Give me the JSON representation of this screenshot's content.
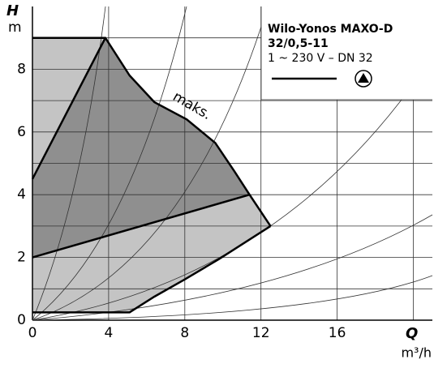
{
  "chart_data": {
    "type": "area",
    "title": "Wilo-Yonos MAXO-D",
    "title_line2": "32/0,5-11",
    "subtitle": "1 ~ 230 V – DN 32",
    "ylabel": "H",
    "yunit": "m",
    "xlabel": "Q",
    "xunit": "m³/h",
    "xlim": [
      0,
      21
    ],
    "ylim": [
      0,
      10
    ],
    "xticks": [
      0,
      4,
      8,
      12,
      16
    ],
    "xminor": [
      20
    ],
    "yticks": [
      0,
      2,
      4,
      6,
      8
    ],
    "yminor": [
      1,
      3,
      5,
      7,
      9
    ],
    "grid": true,
    "fill_light": "#c4c4c4",
    "fill_dark": "#8f8f8f",
    "series": [
      {
        "name": "maks.",
        "x": [
          0,
          3.83,
          5.1,
          6.4,
          8.1,
          9.6,
          10.6,
          11.4,
          12.5
        ],
        "values": [
          9,
          9,
          7.8,
          6.95,
          6.4,
          5.65,
          4.75,
          4.0,
          3.0
        ]
      },
      {
        "x": [
          0,
          5.1,
          6.4,
          8,
          9.8,
          12.5
        ],
        "values": [
          0.25,
          0.25,
          0.75,
          1.3,
          1.95,
          3.0
        ]
      },
      {
        "x": [
          0,
          3.83
        ],
        "values": [
          4.5,
          9
        ]
      },
      {
        "x": [
          0,
          11.4
        ],
        "values": [
          2,
          4
        ]
      }
    ]
  }
}
